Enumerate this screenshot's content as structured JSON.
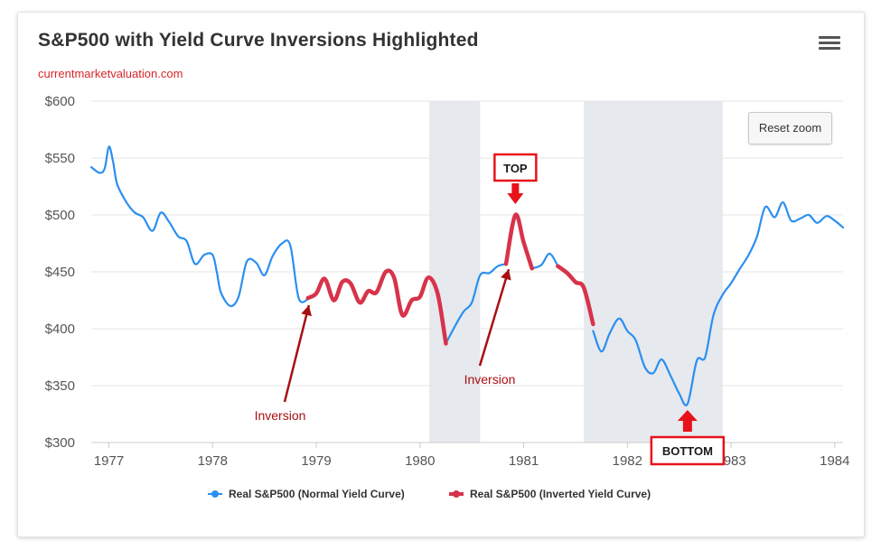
{
  "header": {
    "title": "S&P500 with Yield Curve Inversions Highlighted",
    "subtitle": "currentmarketvaluation.com",
    "reset_label": "Reset zoom"
  },
  "colors": {
    "normal": "#2b8ff0",
    "inverted": "#d7334a",
    "band": "#e6e9ee",
    "annotation": "#a80f12",
    "callout": "#e8121a"
  },
  "chart_data": {
    "type": "line",
    "title": "S&P500 with Yield Curve Inversions Highlighted",
    "xlabel": "",
    "ylabel": "",
    "xlim": [
      1976.83,
      1984.08
    ],
    "ylim": [
      300,
      600
    ],
    "yticks": [
      300,
      350,
      400,
      450,
      500,
      550,
      600
    ],
    "ytick_labels": [
      "$300",
      "$350",
      "$400",
      "$450",
      "$500",
      "$550",
      "$600"
    ],
    "xticks": [
      1977,
      1978,
      1979,
      1980,
      1981,
      1982,
      1983,
      1984
    ],
    "xtick_labels": [
      "1977",
      "1978",
      "1979",
      "1980",
      "1981",
      "1982",
      "1983",
      "1984"
    ],
    "recession_bands": [
      [
        1980.09,
        1980.58
      ],
      [
        1981.58,
        1982.92
      ]
    ],
    "series": [
      {
        "name": "Real S&P500 (Normal Yield Curve)",
        "segments": [
          [
            [
              1976.83,
              542
            ],
            [
              1976.91,
              537
            ],
            [
              1976.96,
              541
            ],
            [
              1977.0,
              560
            ],
            [
              1977.04,
              547
            ],
            [
              1977.08,
              527
            ],
            [
              1977.17,
              511
            ],
            [
              1977.25,
              502
            ],
            [
              1977.33,
              498
            ],
            [
              1977.42,
              486
            ],
            [
              1977.5,
              502
            ],
            [
              1977.58,
              494
            ],
            [
              1977.67,
              481
            ],
            [
              1977.75,
              477
            ],
            [
              1977.83,
              457
            ],
            [
              1977.92,
              465
            ],
            [
              1978.0,
              465
            ],
            [
              1978.04,
              450
            ],
            [
              1978.08,
              432
            ],
            [
              1978.17,
              420
            ],
            [
              1978.25,
              428
            ],
            [
              1978.33,
              459
            ],
            [
              1978.42,
              458
            ],
            [
              1978.5,
              447
            ],
            [
              1978.58,
              464
            ],
            [
              1978.67,
              475
            ],
            [
              1978.75,
              473
            ],
            [
              1978.83,
              427
            ],
            [
              1978.92,
              426
            ]
          ],
          [
            [
              1980.25,
              387
            ],
            [
              1980.33,
              401
            ],
            [
              1980.42,
              415
            ],
            [
              1980.5,
              423
            ],
            [
              1980.58,
              447
            ],
            [
              1980.67,
              449
            ],
            [
              1980.75,
              455
            ],
            [
              1980.83,
              457
            ]
          ],
          [
            [
              1981.08,
              453
            ],
            [
              1981.17,
              456
            ],
            [
              1981.25,
              466
            ],
            [
              1981.33,
              455
            ]
          ],
          [
            [
              1981.67,
              398
            ],
            [
              1981.75,
              380
            ],
            [
              1981.83,
              396
            ],
            [
              1981.92,
              409
            ],
            [
              1982.0,
              398
            ],
            [
              1982.08,
              390
            ],
            [
              1982.17,
              366
            ],
            [
              1982.25,
              361
            ],
            [
              1982.33,
              373
            ],
            [
              1982.42,
              358
            ],
            [
              1982.5,
              343
            ],
            [
              1982.58,
              334
            ],
            [
              1982.67,
              372
            ],
            [
              1982.75,
              375
            ],
            [
              1982.83,
              412
            ],
            [
              1982.92,
              430
            ],
            [
              1983.0,
              440
            ],
            [
              1983.08,
              452
            ],
            [
              1983.17,
              465
            ],
            [
              1983.25,
              481
            ],
            [
              1983.33,
              507
            ],
            [
              1983.42,
              498
            ],
            [
              1983.5,
              511
            ],
            [
              1983.58,
              495
            ],
            [
              1983.67,
              497
            ],
            [
              1983.75,
              500
            ],
            [
              1983.83,
              493
            ],
            [
              1983.92,
              499
            ],
            [
              1984.0,
              495
            ],
            [
              1984.08,
              489
            ]
          ]
        ]
      },
      {
        "name": "Real S&P500 (Inverted Yield Curve)",
        "segments": [
          [
            [
              1978.92,
              427
            ],
            [
              1979.0,
              431
            ],
            [
              1979.08,
              444
            ],
            [
              1979.17,
              425
            ],
            [
              1979.25,
              441
            ],
            [
              1979.33,
              440
            ],
            [
              1979.42,
              423
            ],
            [
              1979.5,
              433
            ],
            [
              1979.58,
              432
            ],
            [
              1979.67,
              450
            ],
            [
              1979.75,
              445
            ],
            [
              1979.83,
              412
            ],
            [
              1979.92,
              425
            ],
            [
              1980.0,
              428
            ],
            [
              1980.08,
              445
            ],
            [
              1980.17,
              431
            ],
            [
              1980.25,
              387
            ]
          ],
          [
            [
              1980.83,
              457
            ],
            [
              1980.92,
              500
            ],
            [
              1981.0,
              476
            ],
            [
              1981.08,
              453
            ]
          ],
          [
            [
              1981.33,
              455
            ],
            [
              1981.42,
              449
            ],
            [
              1981.5,
              441
            ],
            [
              1981.58,
              436
            ],
            [
              1981.67,
              404
            ]
          ]
        ]
      }
    ],
    "annotations": [
      {
        "text": "Inversion",
        "x": 1978.92,
        "y": 427
      },
      {
        "text": "Inversion",
        "x": 1980.83,
        "y": 457
      },
      {
        "text": "TOP",
        "x": 1980.92,
        "y": 500
      },
      {
        "text": "BOTTOM",
        "x": 1982.58,
        "y": 334
      }
    ],
    "legend": [
      "Real S&P500 (Normal Yield Curve)",
      "Real S&P500 (Inverted Yield Curve)"
    ],
    "legend_position": "bottom-center",
    "grid": true
  }
}
